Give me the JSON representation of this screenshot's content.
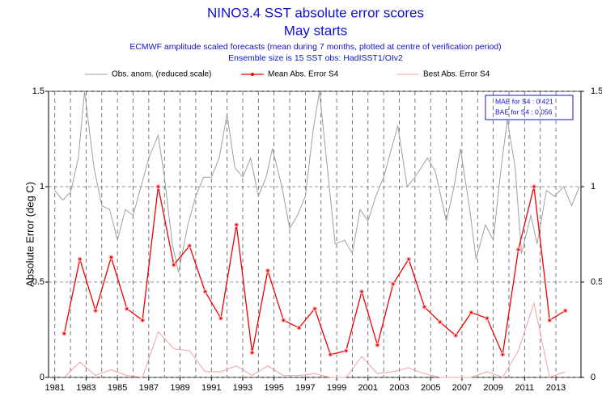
{
  "chart_data": {
    "type": "line",
    "title": "NINO3.4 SST absolute error scores",
    "subtitle": "May starts",
    "notes": [
      "ECMWF amplitude scaled forecasts (mean during  7 months, plotted at centre of verification period)",
      "Ensemble size is 15    SST obs: HadISST1/OIv2"
    ],
    "ylabel": "Absolute Error (deg C)",
    "annotations": [
      "MAE for S4   : 0.421",
      "BAE for S4   : 0.056"
    ],
    "xlim": [
      1980.6,
      2014.6
    ],
    "xticks": [
      1981,
      1983,
      1985,
      1987,
      1989,
      1991,
      1993,
      1995,
      1997,
      1999,
      2001,
      2003,
      2005,
      2007,
      2009,
      2011,
      2013
    ],
    "ylim": [
      0,
      1.5
    ],
    "yticks": [
      0,
      0.5,
      1,
      1.5
    ],
    "grid": true,
    "series": [
      {
        "name": "Obs. anom. (reduced scale)",
        "color": "#a0a0a0",
        "x": [
          1981.0,
          1981.5,
          1982.0,
          1982.5,
          1982.9,
          1983.5,
          1984.0,
          1984.5,
          1985.0,
          1985.5,
          1986.0,
          1986.5,
          1987.0,
          1987.6,
          1988.0,
          1988.5,
          1988.9,
          1989.5,
          1990.0,
          1990.5,
          1991.0,
          1991.5,
          1992.0,
          1992.5,
          1993.0,
          1993.5,
          1994.0,
          1994.5,
          1994.9,
          1995.5,
          1996.0,
          1996.5,
          1997.0,
          1997.5,
          1997.9,
          1998.4,
          1998.9,
          1999.5,
          2000.0,
          2000.5,
          2001.0,
          2001.5,
          2002.0,
          2002.9,
          2003.5,
          2004.0,
          2004.8,
          2005.3,
          2006.0,
          2006.5,
          2006.9,
          2007.5,
          2007.9,
          2008.5,
          2009.0,
          2009.5,
          2009.9,
          2010.4,
          2010.8,
          2011.4,
          2011.8,
          2012.4,
          2012.9,
          2013.5,
          2014.0,
          2014.5
        ],
        "values": [
          0.98,
          0.93,
          0.97,
          1.15,
          1.5,
          1.1,
          0.9,
          0.88,
          0.72,
          0.88,
          0.85,
          1.0,
          1.15,
          1.27,
          1.05,
          0.7,
          0.55,
          0.8,
          0.95,
          1.05,
          1.05,
          1.15,
          1.38,
          1.1,
          1.05,
          1.15,
          0.95,
          1.05,
          1.2,
          1.0,
          0.78,
          0.85,
          0.95,
          1.3,
          1.5,
          1.1,
          0.7,
          0.72,
          0.65,
          0.88,
          0.82,
          0.95,
          1.05,
          1.32,
          1.0,
          1.05,
          1.15,
          1.08,
          0.82,
          1.0,
          1.2,
          0.88,
          0.62,
          0.8,
          0.72,
          1.1,
          1.35,
          1.1,
          0.65,
          0.85,
          0.7,
          0.98,
          0.95,
          1.0,
          0.9,
          1.0
        ]
      },
      {
        "name": "Mean Abs. Error  S4",
        "color": "#ee0000",
        "x": [
          1981.6,
          1982.6,
          1983.6,
          1984.6,
          1985.6,
          1986.6,
          1987.6,
          1988.6,
          1989.6,
          1990.6,
          1991.6,
          1992.6,
          1993.6,
          1994.6,
          1995.6,
          1996.6,
          1997.6,
          1998.6,
          1999.6,
          2000.6,
          2001.6,
          2002.6,
          2003.6,
          2004.6,
          2005.6,
          2006.6,
          2007.6,
          2008.6,
          2009.6,
          2010.6,
          2011.6,
          2012.6,
          2013.6
        ],
        "values": [
          0.23,
          0.62,
          0.35,
          0.63,
          0.36,
          0.3,
          1.0,
          0.59,
          0.69,
          0.45,
          0.31,
          0.8,
          0.13,
          0.56,
          0.3,
          0.26,
          0.36,
          0.12,
          0.14,
          0.45,
          0.17,
          0.49,
          0.62,
          0.37,
          0.29,
          0.22,
          0.34,
          0.31,
          0.12,
          0.67,
          1.0,
          0.3,
          0.35
        ]
      },
      {
        "name": "Best Abs. Error  S4",
        "color": "#f4a0a0",
        "x": [
          1981.6,
          1982.6,
          1983.6,
          1984.6,
          1985.6,
          1986.6,
          1987.6,
          1988.6,
          1989.6,
          1990.6,
          1991.6,
          1992.6,
          1993.6,
          1994.6,
          1995.6,
          1996.6,
          1997.6,
          1998.6,
          1999.6,
          2000.6,
          2001.6,
          2002.6,
          2003.6,
          2004.6,
          2005.6,
          2006.6,
          2007.6,
          2008.6,
          2009.6,
          2010.6,
          2011.6,
          2012.6,
          2013.6
        ],
        "values": [
          0.0,
          0.08,
          0.01,
          0.04,
          0.01,
          0.0,
          0.24,
          0.15,
          0.14,
          0.03,
          0.03,
          0.06,
          0.01,
          0.06,
          0.01,
          0.01,
          0.02,
          0.0,
          0.0,
          0.11,
          0.02,
          0.03,
          0.05,
          0.02,
          0.0,
          0.0,
          0.0,
          0.03,
          0.0,
          0.14,
          0.39,
          0.0,
          0.03
        ]
      }
    ]
  }
}
